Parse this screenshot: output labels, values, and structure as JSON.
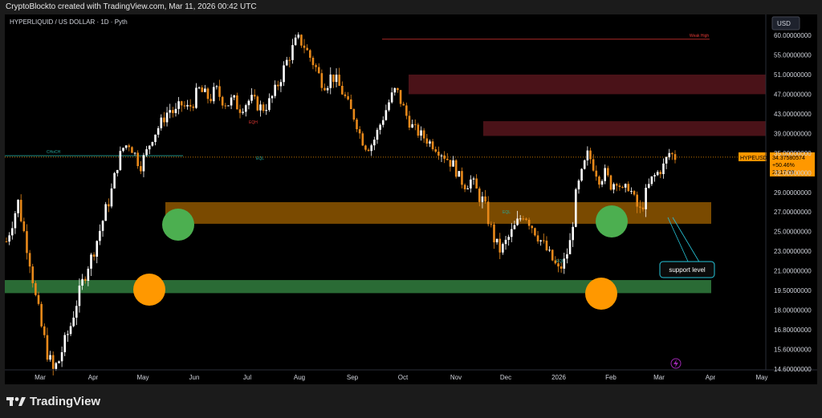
{
  "header": {
    "created_by": "CryptoBlockto created with TradingView.com, Mar 11, 2026 00:42 UTC"
  },
  "branding": {
    "logo_text": "TradingView"
  },
  "chart_data": {
    "type": "candlestick",
    "title": "HYPERLIQUID / US DOLLAR · 1D · Pyth",
    "currency": "USD",
    "y_ticks": [
      "60.00000000",
      "55.00000000",
      "51.00000000",
      "47.00000000",
      "43.00000000",
      "39.00000000",
      "35.00000000",
      "32.00000000",
      "29.00000000",
      "27.00000000",
      "25.00000000",
      "23.00000000",
      "21.00000000",
      "19.50000000",
      "18.00000000",
      "16.80000000",
      "15.60000000",
      "14.60000000"
    ],
    "x_ticks": [
      "Mar",
      "Apr",
      "May",
      "Jun",
      "Jul",
      "Aug",
      "Sep",
      "Oct",
      "Nov",
      "Dec",
      "2026",
      "Feb",
      "Mar",
      "Apr",
      "May"
    ],
    "price_label": {
      "symbol": "HYPEUSD",
      "price": "34.37580574",
      "change": "+50.46%",
      "countdown": "23:17:09"
    },
    "zones": [
      {
        "type": "supply",
        "low": 47.0,
        "high": 51.0,
        "color": "#4a1218"
      },
      {
        "type": "supply",
        "low": 38.5,
        "high": 41.5,
        "color": "#4a1218"
      },
      {
        "type": "support",
        "low": 25.8,
        "high": 28.0,
        "color": "#7a4a00"
      },
      {
        "type": "demand",
        "low": 19.3,
        "high": 20.3,
        "color": "#2a6b35"
      }
    ],
    "levels": [
      {
        "label": "Weak High",
        "value": 59.0,
        "color": "#e53935"
      },
      {
        "label": "CHoCH",
        "value": 34.6,
        "color": "#26a69a"
      }
    ],
    "small_labels": [
      "EQH",
      "EQL",
      "EQL",
      "EQL"
    ],
    "annotations": [
      {
        "text": "support level"
      }
    ],
    "path_prices": [
      24,
      26,
      28,
      25,
      22,
      19,
      17,
      15.5,
      14.5,
      15,
      16,
      17,
      18.5,
      20,
      21.5,
      23,
      25,
      27,
      29,
      33,
      36,
      37,
      35,
      33,
      35,
      38,
      40,
      42,
      44,
      43,
      45,
      44,
      45,
      48,
      47,
      46,
      48,
      46,
      45,
      46,
      44,
      45,
      46,
      45,
      44,
      45,
      47,
      50,
      53,
      56,
      59,
      58,
      55,
      53,
      50,
      49,
      51,
      49,
      47,
      44,
      42,
      38,
      36,
      37,
      40,
      43,
      46,
      48,
      45,
      42,
      40,
      39,
      38,
      37,
      36,
      35,
      34,
      33,
      31,
      30,
      31,
      29,
      28,
      26,
      24,
      23,
      24,
      25,
      26,
      27,
      26,
      25,
      24,
      23,
      22,
      21,
      22,
      24,
      29,
      32,
      35,
      33,
      31,
      32,
      30,
      31,
      29,
      30,
      28,
      27,
      29,
      31,
      32,
      33,
      35,
      34.4
    ]
  }
}
